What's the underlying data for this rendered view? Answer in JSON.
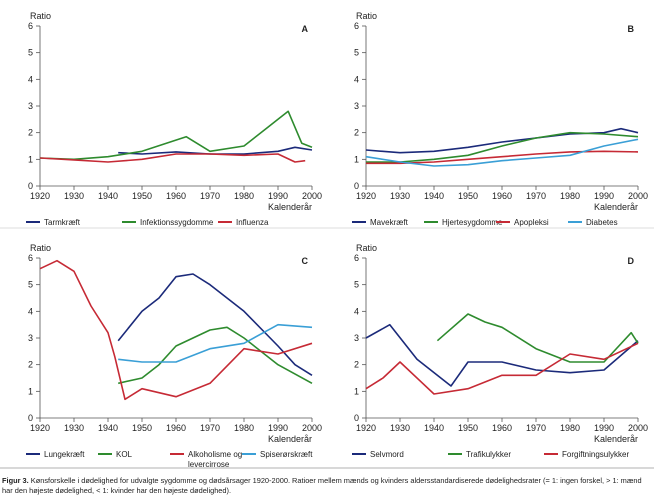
{
  "caption": {
    "label": "Figur 3.",
    "text": "Kønsforskelle i dødelighed for udvalgte sygdomme og dødsårsager 1920-2000. Ratioer mellem mænds og kvinders aldersstandardiserede dødelighedsrater (= 1: ingen forskel, > 1: mænd har den højeste dødelighed, < 1: kvinder har den højeste dødelighed)."
  },
  "colors": {
    "navy": "#1b2a7a",
    "green": "#2e8b2e",
    "red": "#c62a35",
    "blue": "#3a9fd6"
  },
  "chart_data": [
    {
      "panel": "A",
      "type": "line",
      "ylabel": "Ratio",
      "xlabel": "Kalenderår",
      "xlim": [
        1920,
        2000
      ],
      "ylim": [
        0,
        6
      ],
      "xticks": [
        1920,
        1930,
        1940,
        1950,
        1960,
        1970,
        1980,
        1990,
        2000
      ],
      "yticks": [
        0,
        1,
        2,
        3,
        4,
        5,
        6
      ],
      "series": [
        {
          "name": "Tarmkræft",
          "color": "#1b2a7a",
          "x": [
            1943,
            1950,
            1960,
            1970,
            1980,
            1990,
            1995,
            2000
          ],
          "y": [
            1.25,
            1.2,
            1.28,
            1.2,
            1.2,
            1.3,
            1.45,
            1.35
          ]
        },
        {
          "name": "Infektionssygdomme",
          "color": "#2e8b2e",
          "x": [
            1920,
            1930,
            1940,
            1950,
            1963,
            1970,
            1980,
            1990,
            1993,
            1997,
            2000
          ],
          "y": [
            1.05,
            1.0,
            1.1,
            1.3,
            1.85,
            1.3,
            1.5,
            2.5,
            2.8,
            1.6,
            1.45
          ]
        },
        {
          "name": "Influenza",
          "color": "#c62a35",
          "x": [
            1920,
            1930,
            1940,
            1950,
            1960,
            1970,
            1980,
            1990,
            1995,
            1998
          ],
          "y": [
            1.05,
            0.98,
            0.9,
            1.0,
            1.2,
            1.2,
            1.15,
            1.2,
            0.9,
            0.95
          ]
        }
      ],
      "legend": [
        {
          "label": "Tarmkræft",
          "color": "#1b2a7a"
        },
        {
          "label": "Infektionssygdomme",
          "color": "#2e8b2e"
        },
        {
          "label": "Influenza",
          "color": "#c62a35"
        }
      ]
    },
    {
      "panel": "B",
      "type": "line",
      "ylabel": "Ratio",
      "xlabel": "Kalenderår",
      "xlim": [
        1920,
        2000
      ],
      "ylim": [
        0,
        6
      ],
      "xticks": [
        1920,
        1930,
        1940,
        1950,
        1960,
        1970,
        1980,
        1990,
        2000
      ],
      "yticks": [
        0,
        1,
        2,
        3,
        4,
        5,
        6
      ],
      "series": [
        {
          "name": "Mavekræft",
          "color": "#1b2a7a",
          "x": [
            1920,
            1930,
            1940,
            1950,
            1960,
            1970,
            1980,
            1990,
            1995,
            2000
          ],
          "y": [
            1.35,
            1.25,
            1.3,
            1.45,
            1.65,
            1.8,
            1.95,
            2.0,
            2.15,
            2.0
          ]
        },
        {
          "name": "Hjertesygdomme",
          "color": "#2e8b2e",
          "x": [
            1920,
            1930,
            1940,
            1950,
            1960,
            1970,
            1980,
            1990,
            2000
          ],
          "y": [
            0.9,
            0.9,
            1.0,
            1.15,
            1.5,
            1.8,
            2.0,
            1.95,
            1.85
          ]
        },
        {
          "name": "Apopleksi",
          "color": "#c62a35",
          "x": [
            1920,
            1930,
            1940,
            1950,
            1960,
            1970,
            1980,
            1990,
            2000
          ],
          "y": [
            0.85,
            0.85,
            0.9,
            1.0,
            1.1,
            1.2,
            1.28,
            1.3,
            1.28
          ]
        },
        {
          "name": "Diabetes",
          "color": "#3a9fd6",
          "x": [
            1920,
            1930,
            1940,
            1950,
            1960,
            1970,
            1980,
            1990,
            2000
          ],
          "y": [
            1.1,
            0.9,
            0.75,
            0.8,
            0.95,
            1.05,
            1.15,
            1.5,
            1.75
          ]
        }
      ],
      "legend": [
        {
          "label": "Mavekræft",
          "color": "#1b2a7a"
        },
        {
          "label": "Hjertesygdomme",
          "color": "#2e8b2e"
        },
        {
          "label": "Apopleksi",
          "color": "#c62a35"
        },
        {
          "label": "Diabetes",
          "color": "#3a9fd6"
        }
      ]
    },
    {
      "panel": "C",
      "type": "line",
      "ylabel": "Ratio",
      "xlabel": "Kalenderår",
      "xlim": [
        1920,
        2000
      ],
      "ylim": [
        0,
        6
      ],
      "xticks": [
        1920,
        1930,
        1940,
        1950,
        1960,
        1970,
        1980,
        1990,
        2000
      ],
      "yticks": [
        0,
        1,
        2,
        3,
        4,
        5,
        6
      ],
      "series": [
        {
          "name": "Lungekræft",
          "color": "#1b2a7a",
          "x": [
            1943,
            1950,
            1955,
            1960,
            1965,
            1970,
            1980,
            1990,
            1995,
            2000
          ],
          "y": [
            2.9,
            4.0,
            4.5,
            5.3,
            5.4,
            5.0,
            4.0,
            2.7,
            2.0,
            1.6
          ]
        },
        {
          "name": "KOL",
          "color": "#2e8b2e",
          "x": [
            1943,
            1950,
            1955,
            1960,
            1970,
            1975,
            1980,
            1990,
            2000
          ],
          "y": [
            1.3,
            1.5,
            2.0,
            2.7,
            3.3,
            3.4,
            3.0,
            2.0,
            1.3
          ]
        },
        {
          "name": "Alkoholisme og levercirrose",
          "color": "#c62a35",
          "x": [
            1920,
            1925,
            1930,
            1935,
            1940,
            1942,
            1945,
            1950,
            1960,
            1970,
            1980,
            1990,
            2000
          ],
          "y": [
            5.6,
            5.9,
            5.5,
            4.2,
            3.2,
            2.3,
            0.7,
            1.1,
            0.8,
            1.3,
            2.6,
            2.4,
            2.8
          ]
        },
        {
          "name": "Spiserørskræft",
          "color": "#3a9fd6",
          "x": [
            1943,
            1950,
            1960,
            1970,
            1980,
            1990,
            2000
          ],
          "y": [
            2.2,
            2.1,
            2.1,
            2.6,
            2.8,
            3.5,
            3.4
          ]
        }
      ],
      "legend": [
        {
          "label": "Lungekræft",
          "color": "#1b2a7a"
        },
        {
          "label": "KOL",
          "color": "#2e8b2e"
        },
        {
          "label": "Alkoholisme og levercirrose",
          "color": "#c62a35"
        },
        {
          "label": "Spiserørskræft",
          "color": "#3a9fd6"
        }
      ]
    },
    {
      "panel": "D",
      "type": "line",
      "ylabel": "Ratio",
      "xlabel": "Kalenderår",
      "xlim": [
        1920,
        2000
      ],
      "ylim": [
        0,
        6
      ],
      "xticks": [
        1920,
        1930,
        1940,
        1950,
        1960,
        1970,
        1980,
        1990,
        2000
      ],
      "yticks": [
        0,
        1,
        2,
        3,
        4,
        5,
        6
      ],
      "series": [
        {
          "name": "Selvmord",
          "color": "#1b2a7a",
          "x": [
            1920,
            1927,
            1935,
            1945,
            1950,
            1960,
            1970,
            1980,
            1990,
            2000
          ],
          "y": [
            3.0,
            3.5,
            2.2,
            1.2,
            2.1,
            2.1,
            1.8,
            1.7,
            1.8,
            2.9
          ]
        },
        {
          "name": "Trafikulykker",
          "color": "#2e8b2e",
          "x": [
            1941,
            1950,
            1955,
            1960,
            1970,
            1980,
            1990,
            1998,
            2000
          ],
          "y": [
            2.9,
            3.9,
            3.6,
            3.4,
            2.6,
            2.1,
            2.1,
            3.2,
            2.8
          ]
        },
        {
          "name": "Forgiftningsulykker",
          "color": "#c62a35",
          "x": [
            1920,
            1925,
            1930,
            1940,
            1950,
            1960,
            1970,
            1980,
            1990,
            2000
          ],
          "y": [
            1.1,
            1.5,
            2.1,
            0.9,
            1.1,
            1.6,
            1.6,
            2.4,
            2.2,
            2.8
          ]
        }
      ],
      "legend": [
        {
          "label": "Selvmord",
          "color": "#1b2a7a"
        },
        {
          "label": "Trafikulykker",
          "color": "#2e8b2e"
        },
        {
          "label": "Forgiftningsulykker",
          "color": "#c62a35"
        }
      ]
    }
  ]
}
